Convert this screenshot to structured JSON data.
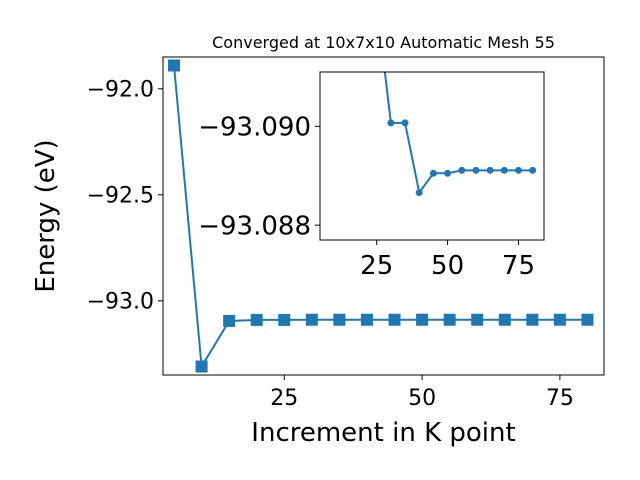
{
  "chart_data": [
    {
      "type": "line",
      "title": "Converged at 10x7x10 Automatic Mesh 55",
      "xlabel": "Increment in K point",
      "ylabel": "Energy (eV)",
      "xlim": [
        3,
        83
      ],
      "ylim": [
        -93.35,
        -91.85
      ],
      "x_ticks": [
        25,
        50,
        75
      ],
      "y_ticks": [
        -93.0,
        -92.5,
        -92.0
      ],
      "x_tick_labels": [
        "25",
        "50",
        "75"
      ],
      "y_tick_labels": [
        "−93.0",
        "−92.5",
        "−92.0"
      ],
      "grid": false,
      "marker": "square",
      "series": [
        {
          "color": "#1f77b4",
          "x": [
            5,
            10,
            15,
            20,
            25,
            30,
            35,
            40,
            45,
            50,
            55,
            60,
            65,
            70,
            75,
            80
          ],
          "y": [
            -91.89,
            -93.31,
            -93.095,
            -93.0901,
            -93.0901,
            -93.0892,
            -93.0892,
            -93.0893,
            -93.0893,
            -93.0893,
            -93.0893,
            -93.0893,
            -93.0893,
            -93.0893,
            -93.0893,
            -93.0893
          ]
        }
      ]
    },
    {
      "type": "line",
      "title": "",
      "xlabel": "",
      "ylabel": "",
      "xlim": [
        5,
        84
      ],
      "ylim": [
        -93.0877,
        -93.0911
      ],
      "x_ticks": [
        25,
        50,
        75
      ],
      "y_ticks": [
        -93.09,
        -93.088
      ],
      "x_tick_labels": [
        "25",
        "50",
        "75"
      ],
      "y_tick_labels": [
        "−93.090",
        "−93.088"
      ],
      "grid": false,
      "marker": "circle",
      "series": [
        {
          "color": "#1f77b4",
          "x": [
            25,
            30,
            35,
            40,
            45,
            50,
            55,
            60,
            65,
            70,
            75,
            80
          ],
          "y": [
            -93.0925,
            -93.09007,
            -93.09007,
            -93.08866,
            -93.08905,
            -93.08905,
            -93.08911,
            -93.08911,
            -93.08911,
            -93.08911,
            -93.08911,
            -93.08911
          ]
        }
      ]
    }
  ]
}
